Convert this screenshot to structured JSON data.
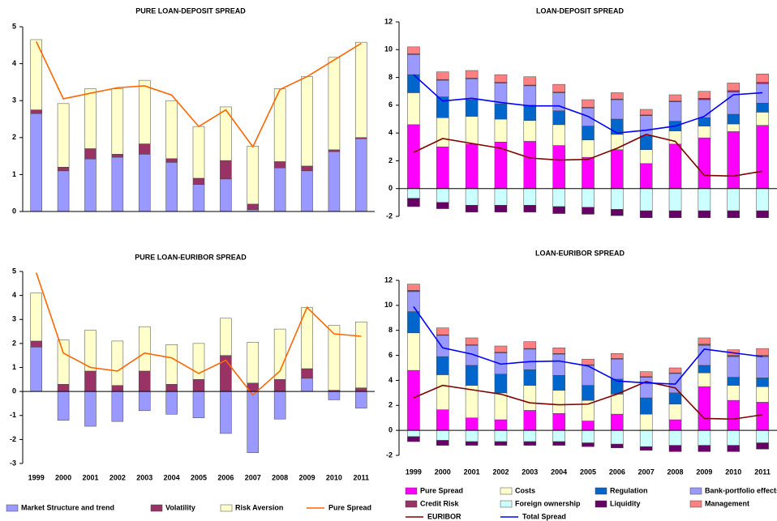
{
  "chart_data": [
    {
      "type": "bar",
      "title": "PURE LOAN-DEPOSIT SPREAD",
      "categories": [
        null,
        null,
        null,
        null,
        null,
        null,
        null,
        null,
        null,
        null,
        null,
        null,
        null
      ],
      "ylim": [
        0,
        5
      ],
      "yticks": [
        0,
        1,
        2,
        3,
        4,
        5
      ],
      "series": [
        {
          "color": "#9999ff",
          "values": [
            2.65,
            1.1,
            1.42,
            1.47,
            1.55,
            1.33,
            0.73,
            0.88,
            0.05,
            1.18,
            1.1,
            1.62,
            1.97
          ]
        },
        {
          "color": "#993366",
          "values": [
            0.1,
            0.1,
            0.28,
            0.08,
            0.28,
            0.1,
            0.17,
            0.5,
            0.15,
            0.17,
            0.13,
            0.05,
            0.03
          ]
        },
        {
          "color": "#ffffcc",
          "values": [
            1.9,
            1.72,
            1.62,
            1.77,
            1.72,
            1.57,
            1.4,
            1.45,
            1.57,
            1.97,
            2.42,
            2.5,
            2.58
          ]
        },
        {
          "type": "line",
          "color": "#ff6600",
          "values": [
            4.6,
            3.05,
            3.2,
            3.35,
            3.4,
            3.15,
            2.3,
            2.75,
            1.75,
            3.3,
            3.65,
            4.1,
            4.55
          ]
        }
      ]
    },
    {
      "type": "bar",
      "title": "LOAN-DEPOSIT SPREAD",
      "categories": [
        null,
        null,
        null,
        null,
        null,
        null,
        null,
        null,
        null,
        null,
        null,
        null,
        null
      ],
      "ylim": [
        -2,
        12
      ],
      "yticks": [
        -2,
        0,
        2,
        4,
        6,
        8,
        10,
        12
      ],
      "series": [
        {
          "color": "#ff00ff",
          "values": [
            4.6,
            3.0,
            3.2,
            3.35,
            3.4,
            3.1,
            2.25,
            2.8,
            1.8,
            3.2,
            3.65,
            4.1,
            4.55
          ]
        },
        {
          "color": "#ffffcc",
          "values": [
            2.3,
            2.1,
            2.0,
            1.65,
            1.5,
            1.5,
            1.25,
            1.1,
            1.0,
            0.95,
            0.85,
            0.55,
            0.95
          ]
        },
        {
          "color": "#0066cc",
          "values": [
            1.3,
            1.5,
            1.2,
            1.1,
            1.1,
            1.0,
            1.0,
            1.1,
            1.0,
            0.7,
            0.6,
            0.7,
            0.65
          ]
        },
        {
          "color": "#9999ff",
          "values": [
            1.45,
            1.2,
            1.5,
            1.5,
            1.4,
            1.3,
            1.3,
            1.4,
            1.45,
            1.4,
            1.3,
            1.6,
            1.4
          ]
        },
        {
          "color": "#993366",
          "values": [
            0.05,
            0.05,
            0.05,
            0.05,
            0.05,
            0.05,
            0.05,
            0.05,
            0.05,
            0.05,
            0.1,
            0.1,
            0.1
          ]
        },
        {
          "color": "#ccffff",
          "values": [
            -0.7,
            -1.0,
            -1.2,
            -1.2,
            -1.2,
            -1.3,
            -1.35,
            -1.5,
            -1.6,
            -1.6,
            -1.6,
            -1.6,
            -1.6
          ]
        },
        {
          "color": "#660066",
          "values": [
            -0.6,
            -0.45,
            -0.5,
            -0.5,
            -0.5,
            -0.5,
            -0.5,
            -0.45,
            -0.5,
            -0.5,
            -0.5,
            -0.5,
            -0.5
          ]
        },
        {
          "color": "#ff8080",
          "values": [
            0.5,
            0.55,
            0.55,
            0.55,
            0.6,
            0.55,
            0.55,
            0.45,
            0.4,
            0.45,
            0.5,
            0.55,
            0.6
          ]
        },
        {
          "type": "line",
          "color": "#800000",
          "values": [
            2.6,
            3.6,
            3.25,
            2.9,
            2.2,
            2.05,
            2.1,
            2.9,
            3.9,
            3.4,
            0.95,
            0.9,
            1.25
          ]
        },
        {
          "type": "line",
          "color": "#0000ff",
          "values": [
            8.2,
            6.3,
            6.5,
            6.2,
            5.95,
            5.95,
            5.2,
            4.0,
            4.2,
            4.5,
            5.2,
            6.75,
            6.9
          ]
        }
      ]
    },
    {
      "type": "bar",
      "title": "PURE LOAN-EURIBOR SPREAD",
      "categories": [
        "1999",
        "2000",
        "2001",
        "2002",
        "2003",
        "2004",
        "2005",
        "2006",
        "2007",
        "2008",
        "2009",
        "2010",
        "2011"
      ],
      "ylim": [
        -3,
        5
      ],
      "yticks": [
        -3,
        -2,
        -1,
        0,
        1,
        2,
        3,
        4,
        5
      ],
      "series": [
        {
          "name": "Market Structure and trend",
          "color": "#9999ff",
          "values": [
            1.85,
            -1.2,
            -1.45,
            -1.25,
            -0.8,
            -0.95,
            -1.1,
            -1.75,
            -2.55,
            -1.15,
            0.55,
            -0.35,
            -0.7
          ]
        },
        {
          "name": "Volatility",
          "color": "#993366",
          "values": [
            0.25,
            0.3,
            0.85,
            0.25,
            0.85,
            0.3,
            0.5,
            1.5,
            0.35,
            0.5,
            0.4,
            0.05,
            0.15
          ]
        },
        {
          "name": "Risk Aversion",
          "color": "#ffffcc",
          "values": [
            2.0,
            1.85,
            1.7,
            1.85,
            1.85,
            1.65,
            1.5,
            1.55,
            1.7,
            2.1,
            2.55,
            2.7,
            2.75
          ]
        },
        {
          "name": "Pure Spread",
          "type": "line",
          "color": "#ff6600",
          "values": [
            4.95,
            1.6,
            1.0,
            0.85,
            1.6,
            1.4,
            0.75,
            1.3,
            -0.15,
            0.85,
            3.5,
            2.4,
            2.3
          ]
        }
      ]
    },
    {
      "type": "bar",
      "title": "LOAN-EURIBOR SPREAD",
      "categories": [
        "1999",
        "2000",
        "2001",
        "2002",
        "2003",
        "2004",
        "2005",
        "2006",
        "2007",
        "2008",
        "2009",
        "2010",
        "2011"
      ],
      "ylim": [
        -2,
        12
      ],
      "yticks": [
        -2,
        0,
        2,
        4,
        6,
        8,
        10,
        12
      ],
      "series": [
        {
          "name": "Pure Spread",
          "color": "#ff00ff",
          "values": [
            4.8,
            1.65,
            1.0,
            0.85,
            1.6,
            1.35,
            0.75,
            1.3,
            0,
            0.85,
            3.5,
            2.4,
            2.25
          ]
        },
        {
          "name": "Costs",
          "color": "#ffffcc",
          "values": [
            3.0,
            2.8,
            2.6,
            2.15,
            2.0,
            1.85,
            1.65,
            1.6,
            1.3,
            1.25,
            1.1,
            1.2,
            1.25
          ]
        },
        {
          "name": "Regulation",
          "color": "#0066cc",
          "values": [
            1.7,
            1.45,
            1.6,
            1.5,
            1.25,
            1.2,
            1.2,
            1.2,
            1.3,
            0.9,
            0.6,
            0.65,
            0.7
          ]
        },
        {
          "name": "Bank-portfolio effects",
          "color": "#9999ff",
          "values": [
            1.6,
            1.7,
            1.6,
            1.7,
            1.65,
            1.7,
            1.6,
            1.6,
            1.65,
            1.55,
            1.6,
            1.65,
            1.7
          ]
        },
        {
          "name": "Credit Risk",
          "color": "#993366",
          "values": [
            0.1,
            0.05,
            0.05,
            0.05,
            0.05,
            0.05,
            0.05,
            0.05,
            0.05,
            0.05,
            0.1,
            0.1,
            0.1
          ]
        },
        {
          "name": "Foreign ownership",
          "color": "#ccffff",
          "values": [
            -0.5,
            -0.8,
            -0.9,
            -0.9,
            -0.9,
            -0.9,
            -1.0,
            -1.1,
            -1.3,
            -1.2,
            -1.2,
            -1.2,
            -1.0
          ]
        },
        {
          "name": "Liquidity",
          "color": "#660066",
          "values": [
            -0.4,
            -0.4,
            -0.3,
            -0.3,
            -0.3,
            -0.3,
            -0.3,
            -0.3,
            -0.3,
            -0.5,
            -0.5,
            -0.5,
            -0.5
          ]
        },
        {
          "name": "Management",
          "color": "#ff8080",
          "values": [
            0.5,
            0.55,
            0.55,
            0.5,
            0.55,
            0.45,
            0.45,
            0.4,
            0.4,
            0.4,
            0.5,
            0.45,
            0.55
          ]
        },
        {
          "name": "EURIBOR",
          "type": "line",
          "color": "#800000",
          "values": [
            2.6,
            3.6,
            3.25,
            2.9,
            2.2,
            2.05,
            2.1,
            2.9,
            3.9,
            3.4,
            0.95,
            0.9,
            1.25
          ]
        },
        {
          "name": "Total Spread",
          "type": "line",
          "color": "#0000ff",
          "values": [
            9.9,
            6.6,
            6.1,
            5.3,
            5.5,
            5.55,
            5.15,
            3.95,
            3.8,
            3.7,
            6.5,
            6.2,
            5.9
          ]
        }
      ]
    }
  ]
}
